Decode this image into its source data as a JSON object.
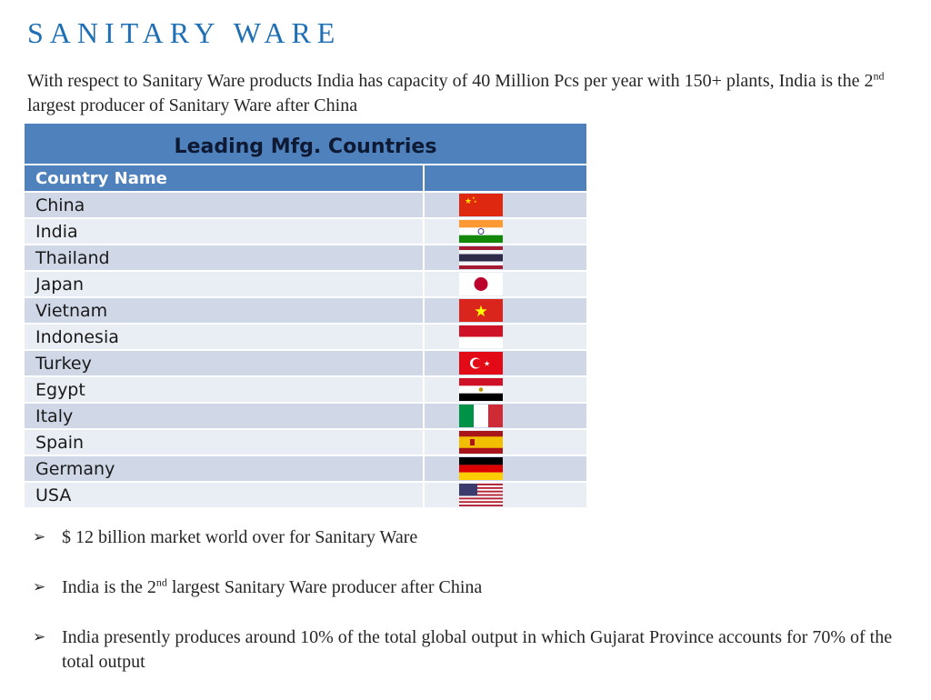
{
  "title": "SANITARY WARE",
  "intro": {
    "part1": "With respect to Sanitary Ware products India has capacity of 40 Million Pcs per year with 150+ plants, India is the 2",
    "sup": "nd",
    "part2": " largest producer of Sanitary Ware after China"
  },
  "table": {
    "title": "Leading Mfg. Countries",
    "header": "Country Name",
    "rows": [
      {
        "name": "China",
        "flag": "china-flag"
      },
      {
        "name": "India",
        "flag": "india-flag"
      },
      {
        "name": "Thailand",
        "flag": "thailand-flag"
      },
      {
        "name": "Japan",
        "flag": "japan-flag"
      },
      {
        "name": "Vietnam",
        "flag": "vietnam-flag"
      },
      {
        "name": "Indonesia",
        "flag": "indonesia-flag"
      },
      {
        "name": "Turkey",
        "flag": "turkey-flag"
      },
      {
        "name": "Egypt",
        "flag": "egypt-flag"
      },
      {
        "name": "Italy",
        "flag": "italy-flag"
      },
      {
        "name": "Spain",
        "flag": "spain-flag"
      },
      {
        "name": "Germany",
        "flag": "germany-flag"
      },
      {
        "name": "USA",
        "flag": "usa-flag"
      }
    ]
  },
  "bullets": {
    "marker": "➢",
    "b1": "$ 12 billion market world over for Sanitary Ware",
    "b2_part1": "India is the 2",
    "b2_sup": "nd",
    "b2_part2": " largest Sanitary Ware producer after China",
    "b3": "India presently produces around 10% of the total global output in which Gujarat Province accounts for 70% of the total output"
  },
  "colors": {
    "title": "#1f6fb4",
    "table_header": "#4f81bd",
    "row_dark": "#d0d8e8",
    "row_light": "#e9edf4"
  }
}
